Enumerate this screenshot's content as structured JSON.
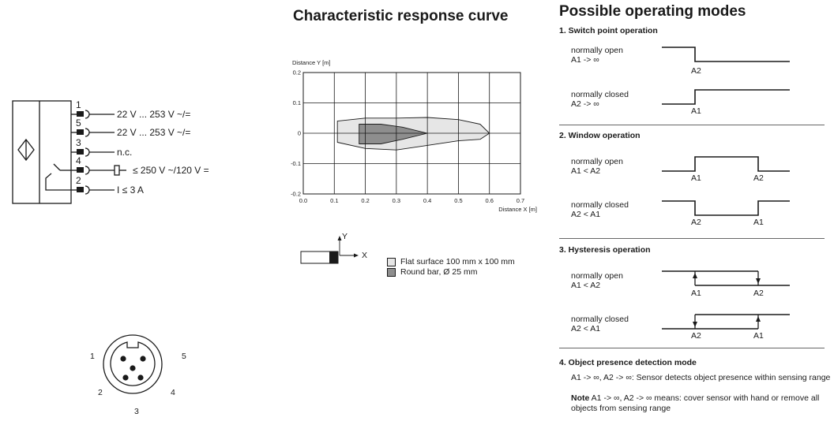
{
  "wiring": {
    "pins": [
      {
        "num": "1",
        "label": "22 V ... 253 V ~/="
      },
      {
        "num": "5",
        "label": "22 V ... 253 V ~/="
      },
      {
        "num": "3",
        "label": "n.c."
      },
      {
        "num": "4",
        "label": "≤ 250 V ~/120 V ="
      },
      {
        "num": "2",
        "label": "I ≤ 3 A"
      }
    ]
  },
  "connector": {
    "pin_labels": [
      "1",
      "2",
      "3",
      "4",
      "5"
    ]
  },
  "response_curve": {
    "title": "Characteristic response curve",
    "legend_axis_y": "Y",
    "legend_axis_x": "X",
    "legend": [
      {
        "label": "Flat surface 100 mm x 100 mm",
        "color": "#e6e6e6"
      },
      {
        "label": "Round bar, Ø 25 mm",
        "color": "#8e8e8e"
      }
    ]
  },
  "chart_data": {
    "type": "area",
    "ylabel": "Distance Y [m]",
    "xlabel": "Distance X [m]",
    "xlim": [
      0.0,
      0.7
    ],
    "ylim": [
      -0.2,
      0.2
    ],
    "xticks": [
      "0.0",
      "0.1",
      "0.2",
      "0.3",
      "0.4",
      "0.5",
      "0.6",
      "0.7"
    ],
    "yticks": [
      "0.2",
      "0.1",
      "0",
      "-0.1",
      "-0.2"
    ],
    "grid": true,
    "series": [
      {
        "name": "Flat surface 100 mm x 100 mm",
        "color": "#e6e6e6",
        "outline": [
          [
            0.11,
            0.04
          ],
          [
            0.2,
            0.05
          ],
          [
            0.3,
            0.05
          ],
          [
            0.4,
            0.052
          ],
          [
            0.5,
            0.045
          ],
          [
            0.57,
            0.03
          ],
          [
            0.6,
            0.0
          ],
          [
            0.57,
            -0.02
          ],
          [
            0.5,
            -0.025
          ],
          [
            0.4,
            -0.04
          ],
          [
            0.3,
            -0.055
          ],
          [
            0.2,
            -0.05
          ],
          [
            0.11,
            -0.03
          ]
        ]
      },
      {
        "name": "Round bar, Ø 25 mm",
        "color": "#8e8e8e",
        "outline": [
          [
            0.18,
            0.03
          ],
          [
            0.25,
            0.03
          ],
          [
            0.32,
            0.02
          ],
          [
            0.4,
            0.0
          ],
          [
            0.32,
            -0.02
          ],
          [
            0.25,
            -0.035
          ],
          [
            0.18,
            -0.035
          ]
        ]
      }
    ]
  },
  "modes": {
    "title": "Possible operating modes",
    "sections": [
      {
        "title": "1. Switch point operation",
        "rows": [
          {
            "line1": "normally open",
            "line2": "A1 -> ∞",
            "markers": [
              "A2"
            ]
          },
          {
            "line1": "normally closed",
            "line2": "A2 -> ∞",
            "markers": [
              "A1"
            ]
          }
        ]
      },
      {
        "title": "2. Window operation",
        "rows": [
          {
            "line1": "normally open",
            "line2": "A1 < A2",
            "markers": [
              "A1",
              "A2"
            ]
          },
          {
            "line1": "normally closed",
            "line2": "A2 < A1",
            "markers": [
              "A2",
              "A1"
            ]
          }
        ]
      },
      {
        "title": "3. Hysteresis operation",
        "rows": [
          {
            "line1": "normally open",
            "line2": "A1 < A2",
            "markers": [
              "A1",
              "A2"
            ]
          },
          {
            "line1": "normally closed",
            "line2": "A2 < A1",
            "markers": [
              "A2",
              "A1"
            ]
          }
        ]
      },
      {
        "title": "4. Object presence detection mode",
        "text1": "A1 -> ∞, A2 -> ∞: Sensor detects object presence within sensing range",
        "note_bold": "Note",
        "note_rest": " A1 -> ∞, A2 -> ∞ means: cover sensor with hand or remove all objects from sensing range"
      }
    ]
  }
}
